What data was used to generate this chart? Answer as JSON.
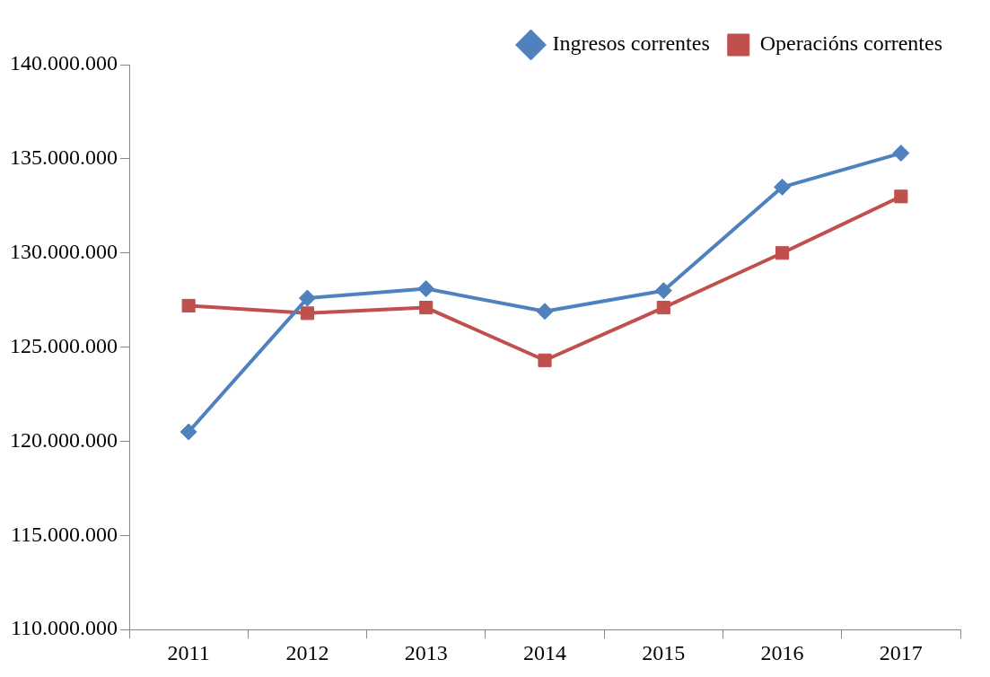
{
  "chart_data": {
    "type": "line",
    "categories": [
      "2011",
      "2012",
      "2013",
      "2014",
      "2015",
      "2016",
      "2017"
    ],
    "series": [
      {
        "name": "Ingresos correntes",
        "color": "#4f81bd",
        "marker": "diamond",
        "values": [
          120500000,
          127600000,
          128100000,
          126900000,
          128000000,
          133500000,
          135300000
        ]
      },
      {
        "name": "Operacións correntes",
        "color": "#c0504d",
        "marker": "square",
        "values": [
          127200000,
          126800000,
          127100000,
          124300000,
          127100000,
          130000000,
          133000000
        ]
      }
    ],
    "ylim": [
      110000000,
      140000000
    ],
    "yticks": [
      {
        "value": 110000000,
        "label": "110.000.000"
      },
      {
        "value": 115000000,
        "label": "115.000.000"
      },
      {
        "value": 120000000,
        "label": "120.000.000"
      },
      {
        "value": 125000000,
        "label": "125.000.000"
      },
      {
        "value": 130000000,
        "label": "130.000.000"
      },
      {
        "value": 135000000,
        "label": "135.000.000"
      },
      {
        "value": 140000000,
        "label": "140.000.000"
      }
    ],
    "grid": false,
    "legend": "top right",
    "line_style": "solid"
  }
}
